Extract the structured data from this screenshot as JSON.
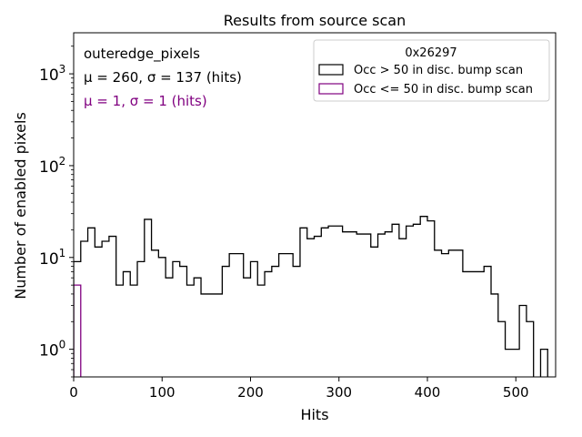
{
  "chart_data": {
    "type": "histogram-step",
    "title": "Results from source scan",
    "xlabel": "Hits",
    "ylabel": "Number of enabled pixels",
    "xlim": [
      0,
      545
    ],
    "ylim": [
      0.5,
      2800
    ],
    "yscale": "log",
    "x_ticks": [
      0,
      100,
      200,
      300,
      400,
      500
    ],
    "x_tick_labels": [
      "0",
      "100",
      "200",
      "300",
      "400",
      "500"
    ],
    "y_ticks": [
      1,
      10,
      100,
      1000
    ],
    "y_tick_labels": [
      "10^0",
      "10^1",
      "10^2",
      "10^3"
    ],
    "bin_width": 8,
    "annotations": {
      "name": "outeredge_pixels",
      "stats_main": "μ = 260, σ = 137 (hits)",
      "stats_low": "μ = 1, σ = 1 (hits)",
      "stats_low_color": "#800080"
    },
    "legend": {
      "title": "0x26297",
      "placement": "top-right",
      "entries": [
        "Occ > 50 in disc. bump scan",
        "Occ <= 50 in disc. bump scan"
      ]
    },
    "series": [
      {
        "name": "Occ > 50 in disc. bump scan",
        "color": "#000000",
        "bin_start": 0,
        "counts": [
          9,
          15,
          21,
          13,
          15,
          17,
          5,
          7,
          5,
          9,
          26,
          12,
          10,
          6,
          9,
          8,
          5,
          6,
          4,
          4,
          4,
          8,
          11,
          11,
          6,
          9,
          5,
          7,
          8,
          11,
          11,
          8,
          21,
          16,
          17,
          21,
          22,
          22,
          19,
          19,
          18,
          18,
          13,
          18,
          19,
          23,
          16,
          22,
          23,
          28,
          25,
          12,
          11,
          12,
          12,
          7,
          7,
          7,
          8,
          4,
          2,
          1,
          1,
          3,
          2,
          0.3,
          1,
          0.3
        ]
      },
      {
        "name": "Occ <= 50 in disc. bump scan",
        "color": "#800080",
        "bin_start": 0,
        "counts": [
          5
        ]
      }
    ]
  }
}
